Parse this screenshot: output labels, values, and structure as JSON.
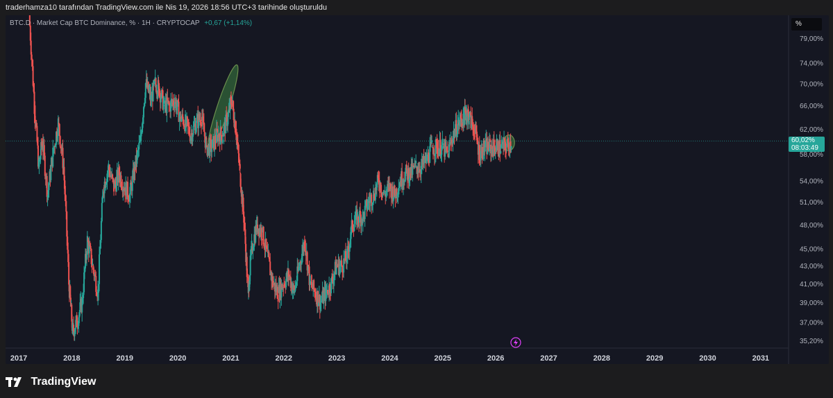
{
  "header": {
    "created_by": "traderhamza10 tarafından TradingView.com ile Nis 19, 2026 18:56 UTC+3 tarihinde oluşturuldu"
  },
  "legend": {
    "symbol_info": "BTC.D · Market Cap BTC Dominance, % · 1H · CRYPTOCAP",
    "change": "+0,67 (+1,14%)",
    "change_color": "#26a69a"
  },
  "scale_button": {
    "label": "%"
  },
  "last_price": {
    "value": "60,02%",
    "countdown": "08:03:49",
    "color": "#26a69a"
  },
  "footer": {
    "brand": "TradingView",
    "logo_icon": "tradingview-logo-icon"
  },
  "flash_icon": "lightning-icon",
  "colors": {
    "up": "#26a69a",
    "down": "#ef5350",
    "background": "#151722",
    "highlight": "#4caf50"
  },
  "chart_data": {
    "type": "line",
    "title": "",
    "xlabel": "",
    "ylabel": "",
    "scale": "log",
    "ylim": [
      34.5,
      84
    ],
    "xlim": [
      2016.75,
      2031.5
    ],
    "grid": false,
    "y_ticks": [
      79,
      74,
      70,
      66,
      62,
      58,
      54,
      51,
      48,
      45,
      43,
      41,
      39,
      37,
      35.2
    ],
    "y_tick_labels": [
      "79,00%",
      "74,00%",
      "70,00%",
      "66,00%",
      "62,00%",
      "58,00%",
      "54,00%",
      "51,00%",
      "48,00%",
      "45,00%",
      "43,00%",
      "41,00%",
      "39,00%",
      "37,00%",
      "35,20%"
    ],
    "x_ticks": [
      2017,
      2018,
      2019,
      2020,
      2021,
      2022,
      2023,
      2024,
      2025,
      2026,
      2027,
      2028,
      2029,
      2030,
      2031
    ],
    "x_tick_labels": [
      "2017",
      "2018",
      "2019",
      "2020",
      "2021",
      "2022",
      "2023",
      "2024",
      "2025",
      "2026",
      "2027",
      "2028",
      "2029",
      "2030",
      "2031"
    ],
    "last_value": 60.02,
    "series": [
      {
        "x": [
          2017.2,
          2017.3,
          2017.38,
          2017.45,
          2017.55,
          2017.65,
          2017.75,
          2017.85,
          2017.95,
          2018.02,
          2018.1,
          2018.2,
          2018.3,
          2018.4,
          2018.5,
          2018.6,
          2018.7,
          2018.8,
          2018.9,
          2019.0,
          2019.1,
          2019.2,
          2019.3,
          2019.4,
          2019.5,
          2019.58,
          2019.65,
          2019.75,
          2019.85,
          2019.95,
          2020.05,
          2020.15,
          2020.25,
          2020.35,
          2020.45,
          2020.55,
          2020.65,
          2020.75,
          2020.85,
          2020.95,
          2021.02,
          2021.1,
          2021.18,
          2021.25,
          2021.33,
          2021.4,
          2021.5,
          2021.6,
          2021.7,
          2021.8,
          2021.9,
          2022.0,
          2022.1,
          2022.2,
          2022.3,
          2022.4,
          2022.5,
          2022.6,
          2022.7,
          2022.8,
          2022.9,
          2023.0,
          2023.1,
          2023.2,
          2023.3,
          2023.4,
          2023.5,
          2023.6,
          2023.7,
          2023.8,
          2023.9,
          2024.0,
          2024.1,
          2024.2,
          2024.3,
          2024.4,
          2024.5,
          2024.6,
          2024.7,
          2024.8,
          2024.9,
          2025.0,
          2025.1,
          2025.2,
          2025.3,
          2025.4,
          2025.45,
          2025.5,
          2025.6,
          2025.7,
          2025.8,
          2025.9,
          2026.0,
          2026.1,
          2026.2,
          2026.3
        ],
        "y": [
          84,
          66,
          56,
          60,
          52,
          58,
          63,
          56,
          41,
          36,
          37,
          39,
          46,
          43,
          40,
          53,
          56,
          53,
          55,
          53,
          52,
          56,
          60,
          70,
          67,
          70,
          69,
          66,
          66,
          67,
          64,
          63,
          61,
          63,
          64,
          59,
          59,
          61,
          61,
          64,
          67,
          62,
          55,
          49,
          40,
          45,
          48,
          47,
          44,
          41,
          40,
          41,
          42,
          40,
          43,
          46,
          41,
          40,
          39,
          40,
          41,
          43,
          43,
          44,
          48,
          49,
          49,
          51,
          52,
          54,
          52,
          53,
          52,
          54,
          55,
          55,
          56,
          56,
          57,
          59,
          59,
          59,
          58,
          61,
          63,
          64,
          65,
          64,
          62,
          58,
          59,
          59,
          59,
          59,
          59,
          60
        ]
      }
    ],
    "annotations": [
      {
        "shape": "ellipse",
        "x": [
          2020.6,
          2021.1
        ],
        "y": [
          58,
          74
        ]
      },
      {
        "shape": "ellipse",
        "x": [
          2026.15,
          2026.35
        ],
        "y": [
          58.5,
          61
        ]
      }
    ]
  }
}
